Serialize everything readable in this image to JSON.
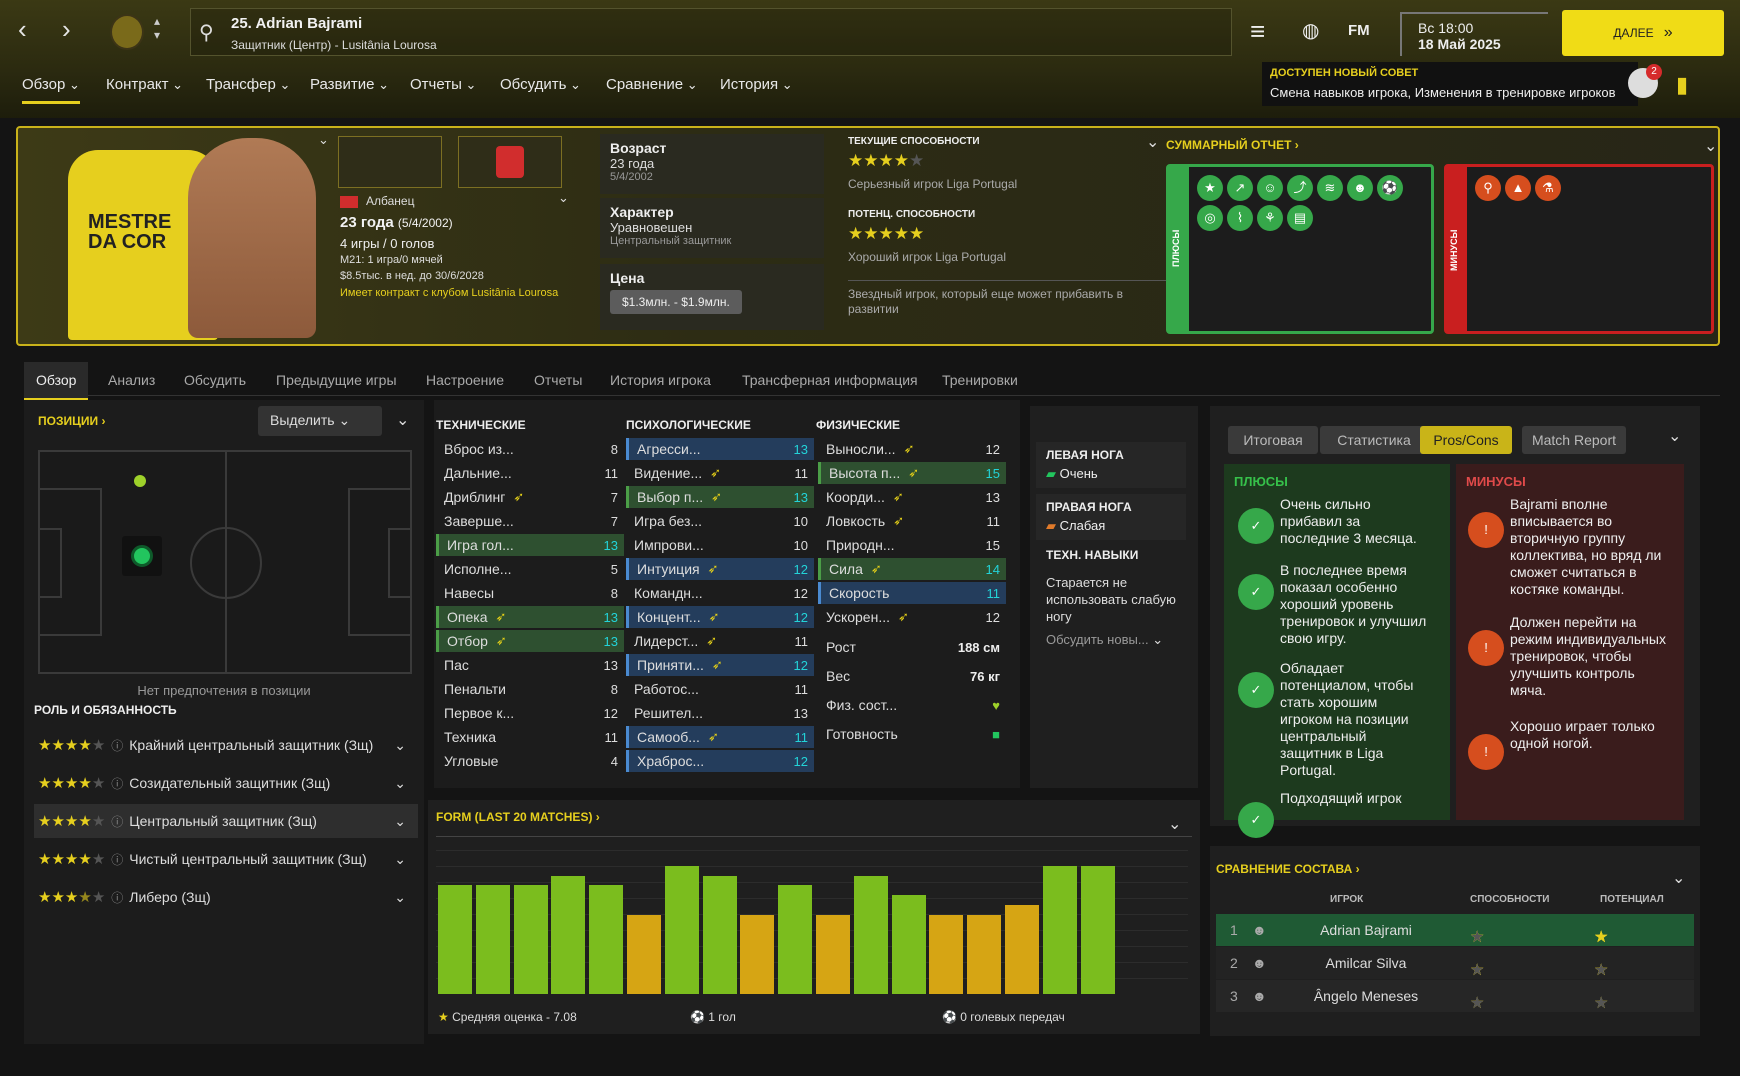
{
  "header": {
    "player_title": "25. Adrian Bajrami",
    "player_subtitle": "Защитник (Центр) - Lusitânia Lourosa",
    "fm_label": "FM",
    "date_line1": "Вс 18:00",
    "date_line2": "18 Май 2025",
    "continue_label": "ДАЛЕЕ",
    "advice_title": "ДОСТУПЕН НОВЫЙ СОВЕТ",
    "advice_text": "Смена навыков игрока, Изменения в тренировке игроков",
    "notif_count": "2"
  },
  "menu": [
    "Обзор",
    "Контракт",
    "Трансфер",
    "Развитие",
    "Отчеты",
    "Обсудить",
    "Сравнение",
    "История"
  ],
  "hero": {
    "nationality": "Албанец",
    "age": "23 года",
    "birth": "(5/4/2002)",
    "games": "4 игры / 0 голов",
    "u21": "М21: 1 игра/0 мячей",
    "wage": "$8.5тыс. в нед. до 30/6/2028",
    "contract": "Имеет контракт с клубом Lusitânia Lourosa",
    "age_label": "Возраст",
    "age_value": "23 года",
    "age_date": "5/4/2002",
    "character_label": "Характер",
    "character_value": "Уравновешен",
    "character_role": "Центральный защитник",
    "value_label": "Цена",
    "value_value": "$1.3млн. - $1.9млн.",
    "current_ability_label": "ТЕКУЩИЕ СПОСОБНОСТИ",
    "current_ability_stars": 4,
    "current_ability_text": "Серьезный игрок Liga Portugal",
    "potential_label": "ПОТЕНЦ. СПОСОБНОСТИ",
    "potential_stars": 5,
    "potential_text": "Хороший игрок Liga Portugal",
    "ability_note": "Звездный игрок, который еще может прибавить в развитии",
    "summary_label": "СУММАРНЫЙ ОТЧЕТ",
    "pluses_label": "ПЛЮСЫ",
    "minuses_label": "МИНУСЫ",
    "shirt_text": "MESTRE DA COR"
  },
  "tabs": [
    "Обзор",
    "Анализ",
    "Обсудить",
    "Предыдущие игры",
    "Настроение",
    "Отчеты",
    "История игрока",
    "Трансферная информация",
    "Тренировки"
  ],
  "positions": {
    "label": "ПОЗИЦИИ",
    "select_label": "Выделить",
    "no_pref": "Нет предпочтения в позиции",
    "role_header": "РОЛЬ И ОБЯЗАННОСТЬ"
  },
  "roles": [
    {
      "name": "Крайний центральный защитник (Зщ)",
      "stars": 4
    },
    {
      "name": "Созидательный защитник (Зщ)",
      "stars": 4
    },
    {
      "name": "Центральный защитник (Зщ)",
      "stars": 4
    },
    {
      "name": "Чистый центральный защитник (Зщ)",
      "stars": 4
    },
    {
      "name": "Либеро (Зщ)",
      "stars": 3.5
    }
  ],
  "attributes": {
    "technical_label": "ТЕХНИЧЕСКИЕ",
    "mental_label": "ПСИХОЛОГИЧЕСКИЕ",
    "physical_label": "ФИЗИЧЕСКИЕ",
    "technical": [
      {
        "n": "Вброс из...",
        "v": "8"
      },
      {
        "n": "Дальние...",
        "v": "11"
      },
      {
        "n": "Дриблинг",
        "v": "7",
        "up": true
      },
      {
        "n": "Заверше...",
        "v": "7"
      },
      {
        "n": "Игра гол...",
        "v": "13",
        "hl": "g"
      },
      {
        "n": "Исполне...",
        "v": "5"
      },
      {
        "n": "Навесы",
        "v": "8"
      },
      {
        "n": "Опека",
        "v": "13",
        "up": true,
        "hl": "g"
      },
      {
        "n": "Отбор",
        "v": "13",
        "up": true,
        "hl": "g"
      },
      {
        "n": "Пас",
        "v": "13"
      },
      {
        "n": "Пенальти",
        "v": "8"
      },
      {
        "n": "Первое к...",
        "v": "12"
      },
      {
        "n": "Техника",
        "v": "11"
      },
      {
        "n": "Угловые",
        "v": "4"
      }
    ],
    "mental": [
      {
        "n": "Агресси...",
        "v": "13",
        "hl": "b"
      },
      {
        "n": "Видение...",
        "v": "11",
        "up": true
      },
      {
        "n": "Выбор п...",
        "v": "13",
        "up": true,
        "hl": "g"
      },
      {
        "n": "Игра без...",
        "v": "10"
      },
      {
        "n": "Импрови...",
        "v": "10"
      },
      {
        "n": "Интуиция",
        "v": "12",
        "up": true,
        "hl": "b"
      },
      {
        "n": "Командн...",
        "v": "12"
      },
      {
        "n": "Концент...",
        "v": "12",
        "up": true,
        "hl": "b"
      },
      {
        "n": "Лидерст...",
        "v": "11",
        "up": true
      },
      {
        "n": "Приняти...",
        "v": "12",
        "up": true,
        "hl": "b"
      },
      {
        "n": "Работос...",
        "v": "11"
      },
      {
        "n": "Решител...",
        "v": "13"
      },
      {
        "n": "Самооб...",
        "v": "11",
        "up": true,
        "hl": "b"
      },
      {
        "n": "Храброс...",
        "v": "12",
        "hl": "b"
      }
    ],
    "physical": [
      {
        "n": "Выносли...",
        "v": "12",
        "up": true
      },
      {
        "n": "Высота п...",
        "v": "15",
        "up": true,
        "hl": "g"
      },
      {
        "n": "Коорди...",
        "v": "13",
        "up": true
      },
      {
        "n": "Ловкость",
        "v": "11",
        "up": true
      },
      {
        "n": "Природн...",
        "v": "15"
      },
      {
        "n": "Сила",
        "v": "14",
        "up": true,
        "hl": "g"
      },
      {
        "n": "Скорость",
        "v": "11",
        "hl": "b"
      },
      {
        "n": "Ускорен...",
        "v": "12",
        "up": true
      }
    ],
    "height_label": "Рост",
    "height_value": "188 см",
    "weight_label": "Вес",
    "weight_value": "76 кг",
    "condition_label": "Физ. сост...",
    "readiness_label": "Готовность"
  },
  "feet": {
    "left_label": "ЛЕВАЯ НОГА",
    "left_value": "Очень",
    "right_label": "ПРАВАЯ НОГА",
    "right_value": "Слабая",
    "tech_label": "ТЕХН. НАВЫКИ",
    "tech_text": "Старается не использовать слабую ногу",
    "discuss": "Обсудить новы..."
  },
  "report_tabs": [
    "Итоговая",
    "Статистика",
    "Pros/Cons",
    "Match Report"
  ],
  "pros_label": "ПЛЮСЫ",
  "cons_label": "МИНУСЫ",
  "pros": [
    "Очень сильно прибавил за последние 3 месяца.",
    "В последнее время показал особенно хороший уровень тренировок и улучшил свою игру.",
    "Обладает потенциалом, чтобы стать хорошим игроком на позиции центральный защитник в Liga Portugal.",
    "Подходящий игрок"
  ],
  "cons": [
    "Bajrami вполне вписывается во вторичную группу коллектива, но вряд ли сможет считаться в костяке команды.",
    "Должен перейти на режим индивидуальных тренировок, чтобы улучшить контроль мяча.",
    "Хорошо играет только одной ногой."
  ],
  "form": {
    "label": "FORM (LAST 20 MATCHES)",
    "avg": "Средняя оценка - 7.08",
    "goals": "1 гол",
    "assists": "0 голевых передач"
  },
  "chart_data": {
    "type": "bar",
    "categories": [
      "1",
      "2",
      "3",
      "4",
      "5",
      "6",
      "7",
      "8",
      "9",
      "10",
      "11",
      "12",
      "13",
      "14",
      "15",
      "16",
      "17",
      "18"
    ],
    "values": [
      7.1,
      7.1,
      7.1,
      7.2,
      7.1,
      6.8,
      7.3,
      7.2,
      6.8,
      7.1,
      6.8,
      7.2,
      7.0,
      6.8,
      6.8,
      6.9,
      7.3,
      7.3
    ],
    "colors": [
      "#7bbd1e",
      "#7bbd1e",
      "#7bbd1e",
      "#7bbd1e",
      "#7bbd1e",
      "#d6a514",
      "#7bbd1e",
      "#7bbd1e",
      "#d6a514",
      "#7bbd1e",
      "#d6a514",
      "#7bbd1e",
      "#7bbd1e",
      "#d6a514",
      "#d6a514",
      "#d6a514",
      "#7bbd1e",
      "#7bbd1e"
    ],
    "ylim": [
      6,
      7.5
    ]
  },
  "comparison": {
    "label": "СРАВНЕНИЕ СОСТАВА",
    "col_player": "ИГРОК",
    "col_ability": "СПОСОБНОСТИ",
    "col_potential": "ПОТЕНЦИАЛ",
    "rows": [
      {
        "n": "1",
        "name": "Adrian Bajrami",
        "ab": 4,
        "pot": 5
      },
      {
        "n": "2",
        "name": "Amilcar Silva",
        "ab": 3.5,
        "pot": 3.5
      },
      {
        "n": "3",
        "name": "Ângelo Meneses",
        "ab": 3,
        "pot": 3
      }
    ]
  }
}
